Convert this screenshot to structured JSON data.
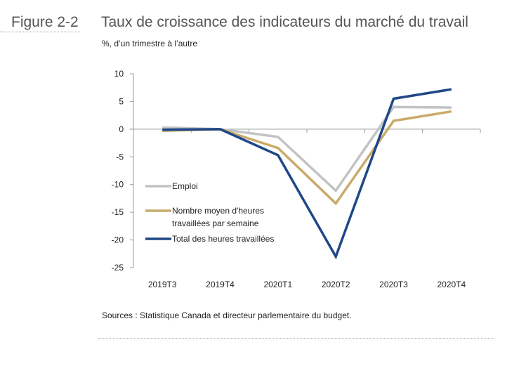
{
  "figure_label": "Figure 2-2",
  "title": "Taux de croissance des indicateurs du marché du travail",
  "subtitle": "%, d’un trimestre à l’autre",
  "sources": "Sources :  Statistique Canada et directeur parlementaire du budget.",
  "chart_data": {
    "type": "line",
    "title": "Taux de croissance des indicateurs du marché du travail",
    "ylabel": "%, d’un trimestre à l’autre",
    "xlabel": "",
    "categories": [
      "2019T3",
      "2019T4",
      "2020T1",
      "2020T2",
      "2020T3",
      "2020T4"
    ],
    "ylim": [
      -25,
      10
    ],
    "yticks": [
      10,
      5,
      0,
      -5,
      -10,
      -15,
      -20,
      -25
    ],
    "grid": false,
    "legend_position": "lower-left",
    "series": [
      {
        "name": "Emploi",
        "color": "#c3c3c3",
        "values": [
          0.3,
          0.0,
          -1.4,
          -11.1,
          4.0,
          3.9
        ]
      },
      {
        "name": "Nombre moyen d'heures travaillées par semaine",
        "legend_lines": [
          "Nombre moyen d'heures",
          "travaillées par semaine"
        ],
        "color": "#c9ab6a",
        "values": [
          -0.3,
          0.0,
          -3.4,
          -13.4,
          1.5,
          3.2
        ]
      },
      {
        "name": "Total des heures travaillées",
        "color": "#1f4788",
        "values": [
          -0.1,
          0.0,
          -4.7,
          -23.0,
          5.5,
          7.2
        ]
      }
    ]
  }
}
